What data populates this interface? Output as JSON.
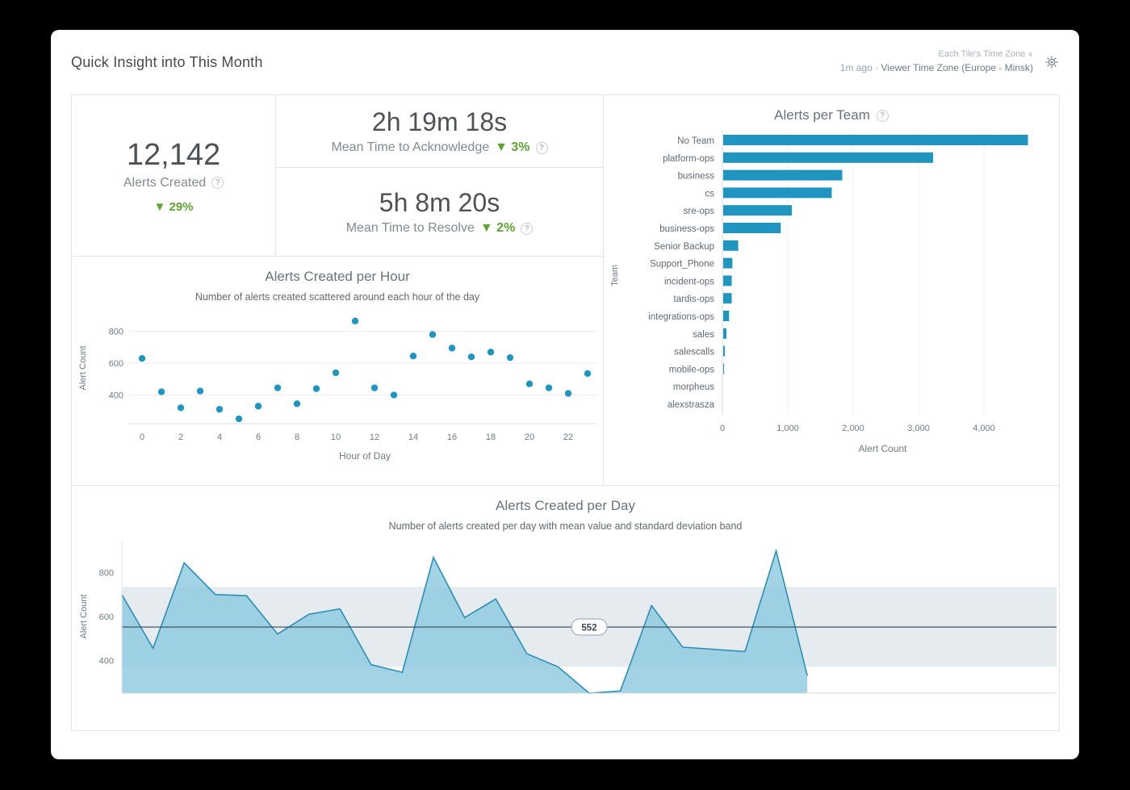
{
  "header": {
    "title": "Quick Insight into This Month",
    "timezone_selector": "Each Tile's Time Zone",
    "updated": "1m ago",
    "separator": "·",
    "viewer_timezone": "Viewer Time Zone (Europe - Minsk)"
  },
  "icons": {
    "help": "?",
    "caret_down": "∨"
  },
  "kpis": {
    "alerts_created": {
      "value": "12,142",
      "label": "Alerts Created",
      "delta": "▼ 29%"
    },
    "mtta": {
      "value": "2h 19m 18s",
      "label": "Mean Time to Acknowledge",
      "delta": "▼ 3%"
    },
    "mttr": {
      "value": "5h 8m 20s",
      "label": "Mean Time to Resolve",
      "delta": "▼ 2%"
    }
  },
  "colors": {
    "accent": "#2095bf",
    "line": "#2b8fb6",
    "area_fill": "#8cc9e0",
    "band": "#d2dbe1",
    "mean_line": "#33475b",
    "green": "#5da432"
  },
  "chart_data": [
    {
      "type": "scatter",
      "title": "Alerts Created per Hour",
      "subtitle": "Number of alerts created scattered around each hour of the day",
      "xlabel": "Hour of Day",
      "ylabel": "Alert Count",
      "x": [
        0,
        1,
        2,
        3,
        4,
        5,
        6,
        7,
        8,
        9,
        10,
        11,
        12,
        13,
        14,
        15,
        16,
        17,
        18,
        19,
        20,
        21,
        22,
        23
      ],
      "y": [
        630,
        420,
        320,
        425,
        310,
        250,
        330,
        445,
        345,
        440,
        540,
        865,
        445,
        400,
        645,
        780,
        695,
        640,
        670,
        635,
        470,
        445,
        410,
        535
      ],
      "xticks": [
        0,
        2,
        4,
        6,
        8,
        10,
        12,
        14,
        16,
        18,
        20,
        22
      ],
      "yticks": [
        400,
        600,
        800
      ],
      "ylim": [
        220,
        920
      ],
      "grid": true,
      "legend": false
    },
    {
      "type": "bar",
      "orientation": "horizontal",
      "title": "Alerts per Team",
      "xlabel": "Alert Count",
      "ylabel": "Team",
      "categories": [
        "No Team",
        "platform-ops",
        "business",
        "cs",
        "sre-ops",
        "business-ops",
        "Senior Backup",
        "Support_Phone",
        "incident-ops",
        "tardis-ops",
        "integrations-ops",
        "sales",
        "salescalls",
        "mobile-ops",
        "morpheus",
        "alexstrasza"
      ],
      "values": [
        4660,
        3210,
        1820,
        1660,
        1050,
        880,
        230,
        140,
        130,
        130,
        90,
        50,
        25,
        10,
        0,
        0
      ],
      "xticks": [
        0,
        1000,
        2000,
        3000,
        4000
      ],
      "xlim": [
        0,
        4900
      ],
      "grid": true,
      "legend": false
    },
    {
      "type": "area",
      "title": "Alerts Created per Day",
      "subtitle": "Number of alerts created per day with mean value and standard deviation band",
      "ylabel": "Alert Count",
      "mean": 552,
      "mean_label": "552",
      "band": [
        370,
        735
      ],
      "days_in_month": 31,
      "days": [
        1,
        2,
        3,
        4,
        5,
        6,
        7,
        8,
        9,
        10,
        11,
        12,
        13,
        14,
        15,
        16,
        17,
        18,
        19,
        20,
        21,
        22,
        23
      ],
      "values": [
        700,
        455,
        845,
        700,
        695,
        520,
        610,
        635,
        380,
        345,
        870,
        595,
        680,
        430,
        370,
        250,
        260,
        650,
        460,
        450,
        440,
        900,
        330
      ],
      "yticks": [
        400,
        600,
        800
      ],
      "ylim": [
        250,
        950
      ],
      "grid": false,
      "legend": false
    }
  ]
}
